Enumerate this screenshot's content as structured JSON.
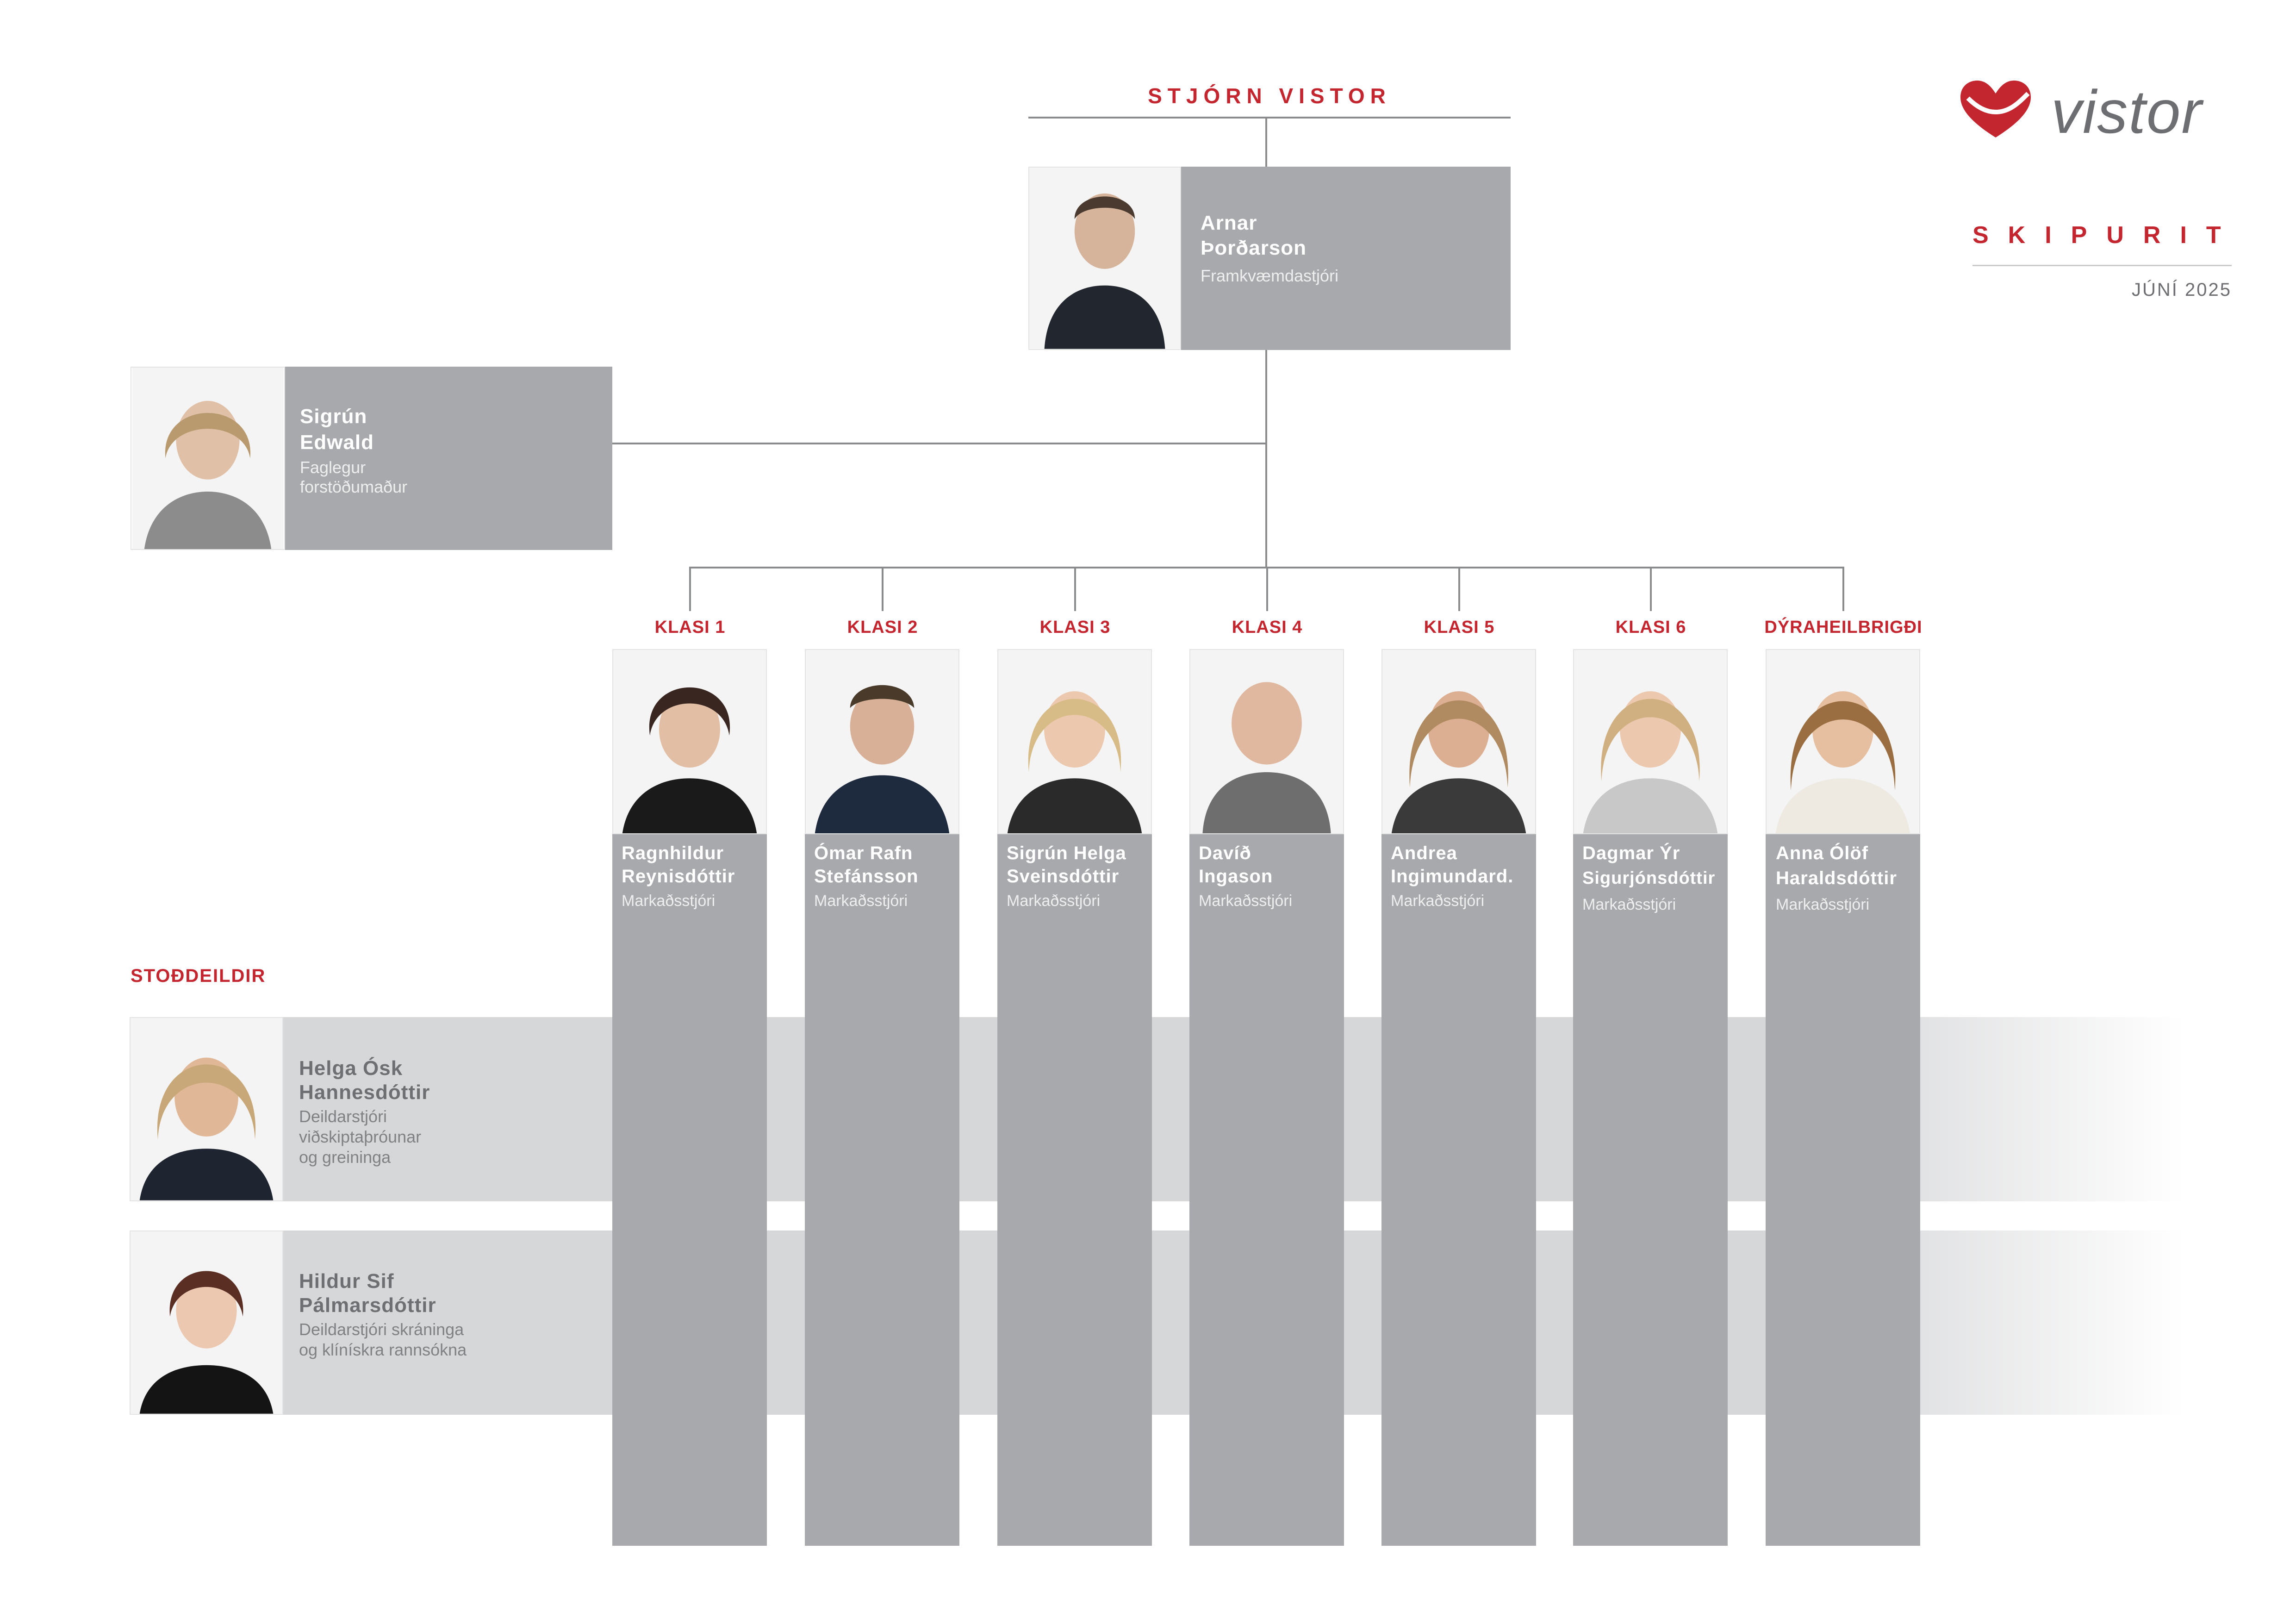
{
  "board": {
    "label": "STJÓRN VISTOR"
  },
  "brand": {
    "name": "vistor",
    "title": "SKIPURIT",
    "date": "JÚNÍ 2025",
    "accent": "#c3262e"
  },
  "ceo": {
    "name_line1": "Arnar",
    "name_line2": "Þorðarson",
    "title": "Framkvæmdastjóri",
    "icon": "person-photo"
  },
  "advisor": {
    "name_line1": "Sigrún",
    "name_line2": "Edwald",
    "title_line1": "Faglegur",
    "title_line2": "forstöðumaður"
  },
  "divisions": [
    {
      "label": "KLASI 1",
      "name_line1": "Ragnhildur",
      "name_line2": "Reynisdóttir",
      "title": "Markaðsstjóri"
    },
    {
      "label": "KLASI 2",
      "name_line1": "Ómar Rafn",
      "name_line2": "Stefánsson",
      "title": "Markaðsstjóri"
    },
    {
      "label": "KLASI 3",
      "name_line1": "Sigrún Helga",
      "name_line2": "Sveinsdóttir",
      "title": "Markaðsstjóri"
    },
    {
      "label": "KLASI 4",
      "name_line1": "Davíð",
      "name_line2": "Ingason",
      "title": "Markaðsstjóri"
    },
    {
      "label": "KLASI 5",
      "name_line1": "Andrea",
      "name_line2": "Ingimundard.",
      "title": "Markaðsstjóri"
    },
    {
      "label": "KLASI 6",
      "name_line1": "Dagmar Ýr",
      "name_line2": "Sigurjónsdóttir",
      "title": "Markaðsstjóri"
    },
    {
      "label": "DÝRAHEILBRIGÐI",
      "name_line1": "Anna Ólöf",
      "name_line2": "Haraldsdóttir",
      "title": "Markaðsstjóri"
    }
  ],
  "support": {
    "label": "STOÐDEILDIR",
    "members": [
      {
        "name_line1": "Helga Ósk",
        "name_line2": "Hannesdóttir",
        "title_line1": "Deildarstjóri",
        "title_line2": "viðskiptaþróunar",
        "title_line3": "og greininga"
      },
      {
        "name_line1": "Hildur Sif",
        "name_line2": "Pálmarsdóttir",
        "title_line1": "Deildarstjóri skráninga",
        "title_line2": "og klínískra rannsókna"
      }
    ]
  }
}
